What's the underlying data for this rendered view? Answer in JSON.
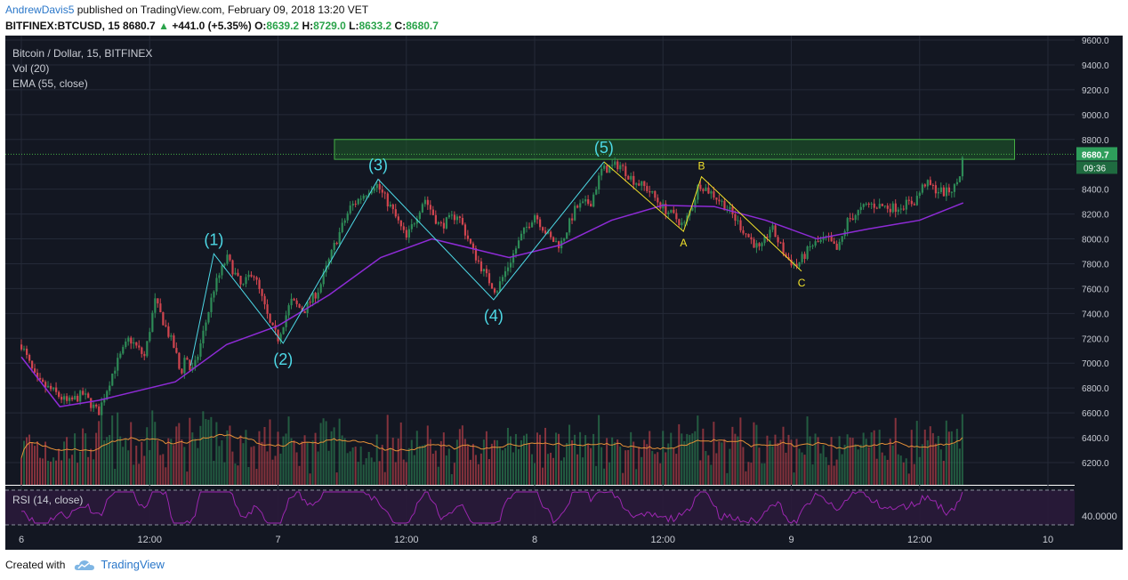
{
  "header": {
    "author": "AndrewDavis5",
    "published_text": "published on TradingView.com, February 09, 2018 13:20 VET",
    "symbol_line": "BITFINEX:BTCUSD, 15",
    "last": "8680.7",
    "change_arrow": "▲",
    "change": "+441.0 (+5.35%)",
    "o_label": "O:",
    "o": "8639.2",
    "h_label": "H:",
    "h": "8729.0",
    "l_label": "L:",
    "l": "8633.2",
    "c_label": "C:",
    "c": "8680.7"
  },
  "legend": {
    "title": "Bitcoin / Dollar, 15, BITFINEX",
    "vol": "Vol (20)",
    "ema": "EMA (55, close)",
    "rsi": "RSI (14, close)"
  },
  "price_tag": {
    "price": "8680.7",
    "countdown": "09:36"
  },
  "rsi_axis_label": "40.0000",
  "footer": {
    "created_with": "Created with",
    "brand": "TradingView"
  },
  "colors": {
    "background": "#131722",
    "grid": "#242a38",
    "up": "#2e8b57",
    "down": "#d1454f",
    "ema": "#8e2bd6",
    "vol_ma": "#e69138",
    "wave": "#4dd9e6",
    "abc": "#f2e22a",
    "zone_fill": "#1f5f2a",
    "zone_stroke": "#45b045",
    "rsi_line": "#9c27b0",
    "rsi_band": "#2a1a3a"
  },
  "chart_data": {
    "type": "candlestick",
    "title": "Bitcoin / Dollar, 15, BITFINEX",
    "interval": "15",
    "x_tick_labels": [
      "6",
      "12:00",
      "7",
      "12:00",
      "8",
      "12:00",
      "9",
      "12:00",
      "10"
    ],
    "y_tick_labels": [
      "9600.0",
      "9400.0",
      "9200.0",
      "9000.0",
      "8800.0",
      "8600.0",
      "8400.0",
      "8200.0",
      "8000.0",
      "7800.0",
      "7600.0",
      "7400.0",
      "7200.0",
      "7000.0",
      "6800.0",
      "6600.0",
      "6400.0",
      "6200.0"
    ],
    "ylim": [
      6050,
      9650
    ],
    "x_range_days": [
      6.0,
      10.0
    ],
    "ema_period": 55,
    "vol_ma_period": 20,
    "rsi_period": 14,
    "resistance_zone": {
      "low": 8640,
      "high": 8800,
      "from_day": 7.22,
      "to_day": 9.87
    },
    "last_price_line": 8680.7,
    "price_path": [
      {
        "d": 6.0,
        "p": 7150
      },
      {
        "d": 6.06,
        "p": 6850
      },
      {
        "d": 6.12,
        "p": 6780
      },
      {
        "d": 6.18,
        "p": 6680
      },
      {
        "d": 6.24,
        "p": 6750
      },
      {
        "d": 6.3,
        "p": 6600
      },
      {
        "d": 6.36,
        "p": 6950
      },
      {
        "d": 6.42,
        "p": 7200
      },
      {
        "d": 6.48,
        "p": 7050
      },
      {
        "d": 6.52,
        "p": 7500
      },
      {
        "d": 6.56,
        "p": 7300
      },
      {
        "d": 6.6,
        "p": 7100
      },
      {
        "d": 6.62,
        "p": 6900
      },
      {
        "d": 6.64,
        "p": 7080
      },
      {
        "d": 6.66,
        "p": 6920
      },
      {
        "d": 6.68,
        "p": 7000
      },
      {
        "d": 6.75,
        "p": 7600
      },
      {
        "d": 6.8,
        "p": 7850
      },
      {
        "d": 6.86,
        "p": 7600
      },
      {
        "d": 6.9,
        "p": 7750
      },
      {
        "d": 6.94,
        "p": 7500
      },
      {
        "d": 6.97,
        "p": 7300
      },
      {
        "d": 7.0,
        "p": 7200
      },
      {
        "d": 7.05,
        "p": 7500
      },
      {
        "d": 7.1,
        "p": 7420
      },
      {
        "d": 7.16,
        "p": 7600
      },
      {
        "d": 7.22,
        "p": 7950
      },
      {
        "d": 7.28,
        "p": 8250
      },
      {
        "d": 7.38,
        "p": 8450
      },
      {
        "d": 7.44,
        "p": 8250
      },
      {
        "d": 7.5,
        "p": 8000
      },
      {
        "d": 7.57,
        "p": 8330
      },
      {
        "d": 7.63,
        "p": 8100
      },
      {
        "d": 7.7,
        "p": 8200
      },
      {
        "d": 7.76,
        "p": 7900
      },
      {
        "d": 7.81,
        "p": 7700
      },
      {
        "d": 7.85,
        "p": 7580
      },
      {
        "d": 7.9,
        "p": 7800
      },
      {
        "d": 7.95,
        "p": 8030
      },
      {
        "d": 8.0,
        "p": 8200
      },
      {
        "d": 8.06,
        "p": 8000
      },
      {
        "d": 8.1,
        "p": 7950
      },
      {
        "d": 8.16,
        "p": 8250
      },
      {
        "d": 8.22,
        "p": 8300
      },
      {
        "d": 8.26,
        "p": 8550
      },
      {
        "d": 8.33,
        "p": 8600
      },
      {
        "d": 8.38,
        "p": 8480
      },
      {
        "d": 8.44,
        "p": 8400
      },
      {
        "d": 8.5,
        "p": 8250
      },
      {
        "d": 8.56,
        "p": 8150
      },
      {
        "d": 8.58,
        "p": 8100
      },
      {
        "d": 8.62,
        "p": 8300
      },
      {
        "d": 8.64,
        "p": 8450
      },
      {
        "d": 8.7,
        "p": 8350
      },
      {
        "d": 8.75,
        "p": 8250
      },
      {
        "d": 8.82,
        "p": 8050
      },
      {
        "d": 8.88,
        "p": 7900
      },
      {
        "d": 8.92,
        "p": 8100
      },
      {
        "d": 8.98,
        "p": 7850
      },
      {
        "d": 9.02,
        "p": 7780
      },
      {
        "d": 9.08,
        "p": 7950
      },
      {
        "d": 9.14,
        "p": 8000
      },
      {
        "d": 9.18,
        "p": 7900
      },
      {
        "d": 9.22,
        "p": 8150
      },
      {
        "d": 9.3,
        "p": 8280
      },
      {
        "d": 9.4,
        "p": 8250
      },
      {
        "d": 9.48,
        "p": 8300
      },
      {
        "d": 9.52,
        "p": 8450
      },
      {
        "d": 9.56,
        "p": 8400
      },
      {
        "d": 9.6,
        "p": 8370
      },
      {
        "d": 9.64,
        "p": 8420
      },
      {
        "d": 9.66,
        "p": 8550
      },
      {
        "d": 9.67,
        "p": 8681
      }
    ],
    "ema_path": [
      {
        "d": 6.0,
        "p": 7050
      },
      {
        "d": 6.15,
        "p": 6650
      },
      {
        "d": 6.3,
        "p": 6700
      },
      {
        "d": 6.6,
        "p": 6850
      },
      {
        "d": 6.8,
        "p": 7150
      },
      {
        "d": 7.0,
        "p": 7300
      },
      {
        "d": 7.2,
        "p": 7550
      },
      {
        "d": 7.4,
        "p": 7850
      },
      {
        "d": 7.6,
        "p": 8000
      },
      {
        "d": 7.9,
        "p": 7850
      },
      {
        "d": 8.1,
        "p": 7950
      },
      {
        "d": 8.3,
        "p": 8150
      },
      {
        "d": 8.5,
        "p": 8270
      },
      {
        "d": 8.7,
        "p": 8260
      },
      {
        "d": 8.9,
        "p": 8150
      },
      {
        "d": 9.1,
        "p": 8000
      },
      {
        "d": 9.3,
        "p": 8080
      },
      {
        "d": 9.5,
        "p": 8150
      },
      {
        "d": 9.67,
        "p": 8290
      }
    ],
    "elliott_waves": [
      {
        "label": "(1)",
        "d": 6.75,
        "p": 7880,
        "pos": "above"
      },
      {
        "label": "(2)",
        "d": 7.02,
        "p": 7160,
        "pos": "below"
      },
      {
        "label": "(3)",
        "d": 7.39,
        "p": 8480,
        "pos": "above"
      },
      {
        "label": "(4)",
        "d": 7.84,
        "p": 7510,
        "pos": "below"
      },
      {
        "label": "(5)",
        "d": 8.27,
        "p": 8620,
        "pos": "above"
      }
    ],
    "elliott_start": {
      "d": 6.66,
      "p": 6980
    },
    "corrective_waves": [
      {
        "label": "A",
        "d": 8.58,
        "p": 8060,
        "pos": "below"
      },
      {
        "label": "B",
        "d": 8.65,
        "p": 8500,
        "pos": "above"
      },
      {
        "label": "C",
        "d": 9.04,
        "p": 7740,
        "pos": "below"
      }
    ]
  }
}
